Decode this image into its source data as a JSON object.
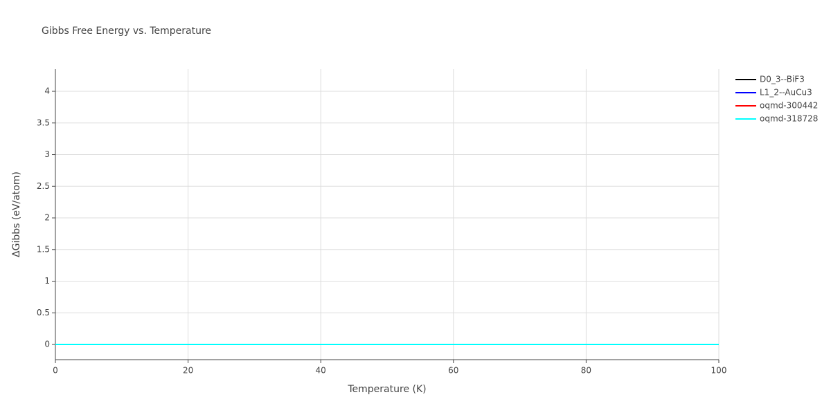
{
  "chart_data": {
    "type": "line",
    "title": "Gibbs Free Energy vs. Temperature",
    "x_label": "Temperature (K)",
    "y_label": "ΔGibbs (eV/atom)",
    "x": [
      0,
      100
    ],
    "series": [
      {
        "name": "D0_3--BiF3",
        "color": "#000000",
        "values": [
          0,
          0
        ]
      },
      {
        "name": "L1_2--AuCu3",
        "color": "#0000ff",
        "values": [
          0,
          0
        ]
      },
      {
        "name": "oqmd-300442",
        "color": "#ff0000",
        "values": [
          0,
          0
        ]
      },
      {
        "name": "oqmd-318728",
        "color": "#00ffff",
        "values": [
          0,
          0
        ]
      }
    ],
    "xlim": [
      0,
      100
    ],
    "xticks": [
      0,
      20,
      40,
      60,
      80,
      100
    ],
    "ylim": [
      -0.24,
      4.35
    ],
    "yticks": [
      0,
      0.5,
      1,
      1.5,
      2,
      2.5,
      3,
      3.5,
      4
    ],
    "grid": true,
    "legend": "right"
  }
}
